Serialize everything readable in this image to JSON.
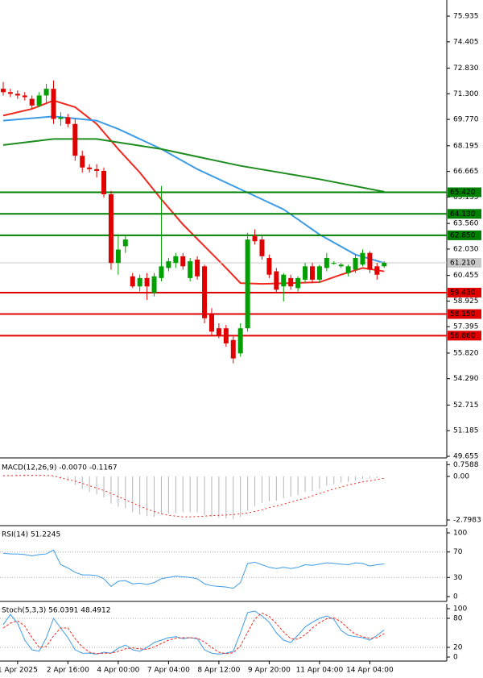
{
  "chart_data": [
    {
      "type": "candlestick",
      "categories": [
        null,
        null,
        "1 Apr 2025",
        null,
        null,
        null,
        null,
        null,
        null,
        "2 Apr 16:00",
        null,
        null,
        null,
        null,
        null,
        null,
        "4 Apr 00:00",
        null,
        null,
        null,
        null,
        null,
        null,
        "7 Apr 04:00",
        null,
        null,
        null,
        null,
        null,
        null,
        "8 Apr 12:00",
        null,
        null,
        null,
        null,
        null,
        null,
        "9 Apr 20:00",
        null,
        null,
        null,
        null,
        null,
        null,
        "11 Apr 04:00",
        null,
        null,
        null,
        null,
        null,
        null,
        "14 Apr 04:00",
        null,
        null
      ],
      "candles": [
        [
          71.6,
          72.0,
          71.2,
          71.4
        ],
        [
          71.4,
          71.6,
          71.1,
          71.3
        ],
        [
          71.3,
          71.5,
          71.0,
          71.2
        ],
        [
          71.2,
          71.4,
          70.9,
          71.1
        ],
        [
          71.0,
          71.2,
          70.4,
          70.6
        ],
        [
          70.6,
          71.4,
          70.5,
          71.2
        ],
        [
          71.2,
          71.9,
          70.7,
          71.6
        ],
        [
          71.6,
          72.1,
          69.5,
          69.8
        ],
        [
          69.8,
          70.2,
          69.4,
          69.9
        ],
        [
          69.9,
          70.1,
          69.3,
          69.5
        ],
        [
          69.5,
          69.8,
          67.3,
          67.6
        ],
        [
          67.6,
          67.9,
          66.6,
          66.9
        ],
        [
          66.9,
          67.1,
          66.6,
          66.8
        ],
        [
          66.8,
          67.1,
          66.3,
          66.7
        ],
        [
          66.7,
          66.9,
          65.1,
          65.3
        ],
        [
          65.3,
          65.5,
          60.8,
          61.2
        ],
        [
          61.2,
          62.9,
          60.5,
          62.0
        ],
        [
          62.2,
          62.9,
          61.8,
          62.6
        ],
        [
          60.4,
          60.6,
          59.7,
          59.8
        ],
        [
          59.8,
          60.5,
          59.5,
          60.3
        ],
        [
          60.3,
          60.6,
          59.0,
          59.8
        ],
        [
          59.4,
          60.6,
          59.2,
          60.4
        ],
        [
          60.3,
          65.8,
          60.1,
          61.0
        ],
        [
          60.9,
          61.5,
          60.7,
          61.3
        ],
        [
          61.2,
          61.8,
          60.9,
          61.6
        ],
        [
          61.6,
          61.8,
          60.8,
          61.0
        ],
        [
          60.3,
          61.5,
          60.1,
          61.3
        ],
        [
          61.4,
          61.6,
          60.2,
          60.4
        ],
        [
          61.0,
          61.1,
          57.6,
          57.9
        ],
        [
          58.2,
          58.5,
          56.9,
          57.1
        ],
        [
          57.3,
          57.6,
          56.7,
          56.9
        ],
        [
          57.3,
          57.5,
          56.2,
          56.4
        ],
        [
          56.6,
          56.8,
          55.2,
          55.5
        ],
        [
          55.8,
          57.6,
          55.6,
          57.3
        ],
        [
          57.3,
          63.0,
          57.1,
          62.6
        ],
        [
          62.8,
          63.2,
          62.3,
          62.5
        ],
        [
          62.6,
          62.8,
          61.4,
          61.6
        ],
        [
          61.5,
          61.7,
          60.3,
          60.5
        ],
        [
          60.7,
          60.9,
          59.4,
          59.6
        ],
        [
          59.8,
          60.6,
          58.9,
          60.5
        ],
        [
          60.3,
          60.5,
          59.6,
          59.8
        ],
        [
          59.7,
          60.4,
          59.5,
          60.3
        ],
        [
          60.2,
          61.2,
          60.0,
          61.0
        ],
        [
          61.0,
          61.2,
          60.0,
          60.2
        ],
        [
          60.2,
          61.1,
          60.0,
          61.0
        ],
        [
          60.9,
          61.8,
          60.7,
          61.5
        ],
        [
          61.2,
          61.3,
          61.1,
          61.2
        ],
        [
          61.0,
          61.2,
          60.9,
          61.1
        ],
        [
          60.6,
          61.1,
          60.4,
          61.0
        ],
        [
          60.8,
          61.7,
          60.6,
          61.5
        ],
        [
          61.1,
          62.0,
          61.0,
          61.8
        ],
        [
          61.8,
          61.9,
          60.6,
          60.8
        ],
        [
          61.0,
          61.2,
          60.2,
          60.5
        ],
        [
          61.0,
          61.3,
          60.9,
          61.21
        ]
      ],
      "up_color": "#00a000",
      "down_color": "#e00000",
      "series": [
        {
          "color": "#f0281e",
          "x": [
            0,
            4,
            7,
            10,
            13,
            16,
            19,
            22,
            25,
            28,
            31,
            33,
            36,
            40,
            44,
            47,
            50,
            53
          ],
          "values": [
            70.0,
            70.4,
            70.9,
            70.5,
            69.5,
            68.0,
            66.6,
            65.0,
            63.5,
            62.2,
            60.9,
            60.0,
            59.95,
            60.0,
            60.05,
            60.5,
            60.9,
            60.7
          ]
        },
        {
          "color": "#3c9be6",
          "x": [
            0,
            7,
            13,
            16,
            22,
            27,
            33,
            39,
            44,
            49,
            53
          ],
          "values": [
            69.7,
            69.95,
            69.7,
            69.2,
            68.0,
            66.8,
            65.6,
            64.4,
            62.9,
            61.7,
            61.2
          ]
        },
        {
          "color": "#1e8c1e",
          "x": [
            0,
            7,
            13,
            22,
            33,
            44,
            53
          ],
          "values": [
            68.24,
            68.6,
            68.6,
            68.0,
            67.0,
            66.2,
            65.45
          ]
        }
      ],
      "levels": [
        {
          "value": 65.42,
          "label": "65.420",
          "color": "#008000"
        },
        {
          "value": 64.13,
          "label": "64.130",
          "color": "#008000"
        },
        {
          "value": 62.85,
          "label": "62.850",
          "color": "#008000"
        },
        {
          "value": 61.21,
          "label": "61.210",
          "color": "#c8c8c8"
        },
        {
          "value": 59.43,
          "label": "59.430",
          "color": "#e00000"
        },
        {
          "value": 58.15,
          "label": "58.150",
          "color": "#e00000"
        },
        {
          "value": 56.86,
          "label": "56.860",
          "color": "#e00000"
        }
      ],
      "ylim": [
        49.56,
        76.9
      ],
      "yticks": [
        75.935,
        74.405,
        {
          "value": 72.83,
          "label": "72.830"
        },
        {
          "value": 71.3,
          "label": "71.300"
        },
        {
          "value": 69.77,
          "label": "69.770"
        },
        68.195,
        66.665,
        65.135,
        {
          "value": 63.56,
          "label": "63.560"
        },
        {
          "value": 62.03,
          "label": "62.030"
        },
        60.455,
        58.925,
        57.395,
        {
          "value": 55.82,
          "label": "55.820"
        },
        {
          "value": 54.29,
          "label": "54.290"
        },
        52.715,
        51.185,
        49.655
      ]
    },
    {
      "type": "macd",
      "title": "MACD(12,26,9) -0.0070 -0.1167",
      "values": [
        0.05,
        0.08,
        0.1,
        0.1,
        0.08,
        0.06,
        0.05,
        -0.05,
        -0.15,
        -0.3,
        -0.55,
        -0.8,
        -1.0,
        -1.15,
        -1.35,
        -1.75,
        -1.95,
        -2.05,
        -2.3,
        -2.45,
        -2.55,
        -2.6,
        -2.45,
        -2.4,
        -2.35,
        -2.3,
        -2.3,
        -2.3,
        -2.5,
        -2.6,
        -2.65,
        -2.7,
        -2.75,
        -2.6,
        -2.2,
        -1.9,
        -1.7,
        -1.6,
        -1.55,
        -1.4,
        -1.3,
        -1.2,
        -1.0,
        -0.95,
        -0.8,
        -0.6,
        -0.5,
        -0.4,
        -0.35,
        -0.25,
        -0.15,
        -0.12,
        -0.1,
        -0.007
      ],
      "color": "#b4b4b4",
      "series": [
        {
          "color": "#f0281e",
          "values": [
            0.05,
            0.05,
            0.06,
            0.07,
            0.07,
            0.07,
            0.06,
            0.04,
            -0.1,
            -0.2,
            -0.3,
            -0.45,
            -0.6,
            -0.75,
            -0.9,
            -1.1,
            -1.3,
            -1.5,
            -1.7,
            -1.9,
            -2.1,
            -2.25,
            -2.4,
            -2.5,
            -2.55,
            -2.6,
            -2.6,
            -2.58,
            -2.55,
            -2.52,
            -2.5,
            -2.48,
            -2.45,
            -2.4,
            -2.35,
            -2.25,
            -2.15,
            -2.0,
            -1.9,
            -1.78,
            -1.65,
            -1.52,
            -1.4,
            -1.25,
            -1.1,
            -0.95,
            -0.8,
            -0.68,
            -0.55,
            -0.45,
            -0.35,
            -0.28,
            -0.2,
            -0.117
          ],
          "dash": "2,3"
        }
      ],
      "ylim": [
        -3.16,
        0.98
      ],
      "yticks": [
        0.7588,
        {
          "value": 0,
          "label": "0.00"
        },
        -2.7983
      ]
    },
    {
      "type": "line",
      "title": "RSI(14) 51.2245",
      "series": [
        {
          "color": "#3c9be6",
          "values": [
            68,
            67,
            67,
            66,
            64,
            66,
            67,
            73,
            50,
            45,
            38,
            34,
            34,
            33,
            28,
            16,
            24,
            25,
            20,
            21,
            19,
            22,
            28,
            30,
            32,
            31,
            30,
            28,
            20,
            17,
            16,
            15,
            13,
            22,
            52,
            54,
            50,
            46,
            44,
            46,
            44,
            46,
            50,
            49,
            51,
            53,
            52,
            51,
            50,
            53,
            52,
            48,
            50,
            51.2245
          ]
        }
      ],
      "ylim": [
        -7.6,
        107.6
      ],
      "yticks": [
        100,
        70,
        30,
        0
      ],
      "levels": [
        70,
        30
      ]
    },
    {
      "type": "line",
      "title": "Stoch(5,3,3) 56.0391 48.4912",
      "series": [
        {
          "color": "#3c9be6",
          "values": [
            67,
            88,
            70,
            35,
            15,
            12,
            40,
            80,
            60,
            40,
            15,
            8,
            8,
            6,
            10,
            8,
            18,
            25,
            15,
            12,
            20,
            30,
            35,
            40,
            42,
            38,
            40,
            38,
            15,
            8,
            6,
            8,
            12,
            50,
            92,
            95,
            85,
            72,
            50,
            35,
            30,
            45,
            62,
            72,
            80,
            85,
            78,
            55,
            45,
            42,
            40,
            35,
            45,
            56.0391
          ]
        },
        {
          "color": "#f0281e",
          "dash": "3,2",
          "values": [
            60,
            70,
            75,
            64,
            40,
            20,
            22,
            44,
            60,
            60,
            38,
            21,
            10,
            7,
            8,
            8,
            12,
            17,
            19,
            17,
            16,
            21,
            28,
            35,
            39,
            40,
            40,
            39,
            31,
            20,
            10,
            7,
            9,
            23,
            51,
            79,
            91,
            84,
            69,
            52,
            38,
            37,
            46,
            60,
            71,
            79,
            81,
            73,
            59,
            47,
            42,
            39,
            40,
            48.4912
          ]
        }
      ],
      "ylim": [
        -8.3,
        110
      ],
      "yticks": [
        100,
        80,
        20,
        0
      ],
      "levels": [
        80,
        20
      ]
    }
  ]
}
